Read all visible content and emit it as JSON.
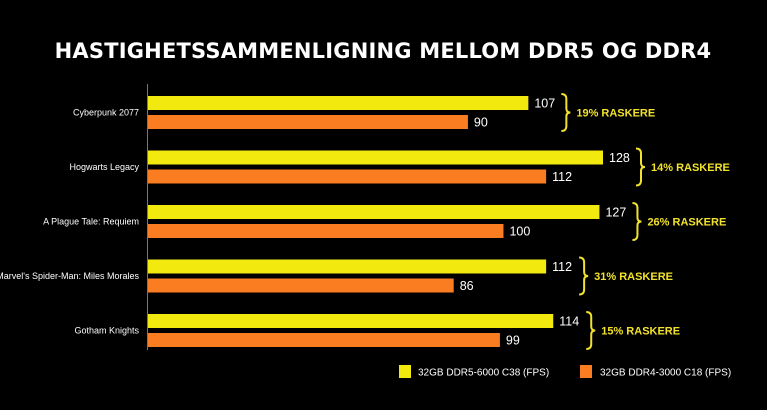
{
  "chart_data": {
    "type": "bar",
    "orientation": "horizontal",
    "title": "HASTIGHETSSAMMENLIGNING MELLOM DDR5 OG DDR4",
    "categories": [
      "Cyberpunk 2077",
      "Hogwarts Legacy",
      "A Plague Tale: Requiem",
      "Marvel's Spider-Man: Miles Morales",
      "Gotham Knights"
    ],
    "series": [
      {
        "name": "32GB DDR5-6000 C38 (FPS)",
        "values": [
          107,
          128,
          127,
          112,
          114
        ],
        "color": "#f2ea0f"
      },
      {
        "name": "32GB DDR4-3000 C18 (FPS)",
        "values": [
          90,
          112,
          100,
          86,
          99
        ],
        "color": "#fb7d22"
      }
    ],
    "annotations": [
      "19% RASKERE",
      "14% RASKERE",
      "26% RASKERE",
      "31% RASKERE",
      "15% RASKERE"
    ],
    "annotation_color": "#f2e22b",
    "xlim": [
      0,
      128
    ],
    "grid": false,
    "legend_position": "bottom-right",
    "background": "#000000"
  }
}
